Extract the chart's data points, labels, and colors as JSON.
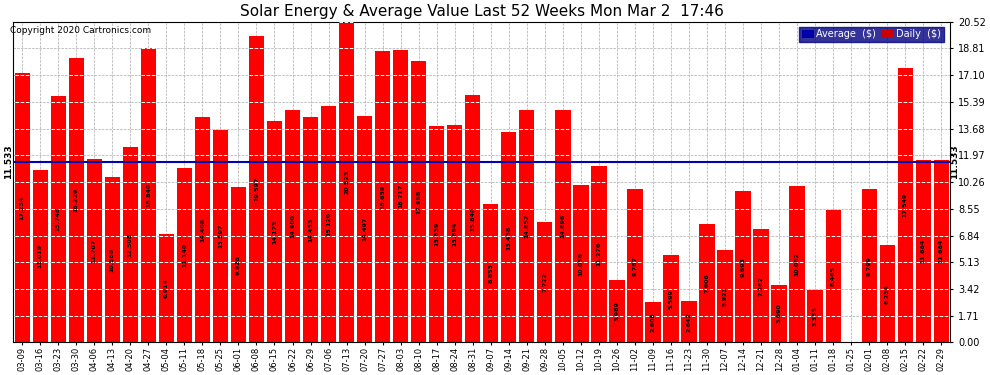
{
  "title": "Solar Energy & Average Value Last 52 Weeks Mon Mar 2  17:46",
  "copyright": "Copyright 2020 Cartronics.com",
  "average_line": 11.533,
  "average_label": "11.533",
  "bar_color": "#ff0000",
  "average_line_color": "#0000bb",
  "background_color": "#ffffff",
  "grid_color": "#aaaaaa",
  "yticks": [
    0.0,
    1.71,
    3.42,
    5.13,
    6.84,
    8.55,
    10.26,
    11.97,
    13.68,
    15.39,
    17.1,
    18.81,
    20.52
  ],
  "legend_avg_color": "#0000aa",
  "legend_daily_color": "#cc0000",
  "dates": [
    "03-09",
    "03-16",
    "03-23",
    "03-30",
    "04-06",
    "04-13",
    "04-20",
    "04-27",
    "05-04",
    "05-11",
    "05-18",
    "05-25",
    "06-01",
    "06-08",
    "06-15",
    "06-22",
    "06-29",
    "07-06",
    "07-13",
    "07-20",
    "07-27",
    "08-03",
    "08-10",
    "08-17",
    "08-24",
    "08-31",
    "09-07",
    "09-14",
    "09-21",
    "09-28",
    "10-05",
    "10-12",
    "10-19",
    "10-26",
    "11-02",
    "11-09",
    "11-16",
    "11-23",
    "11-30",
    "12-07",
    "12-14",
    "12-21",
    "12-28",
    "01-04",
    "01-11",
    "01-18",
    "01-25",
    "02-01",
    "02-08",
    "02-15",
    "02-22",
    "02-29"
  ],
  "values": [
    17.234,
    11.019,
    15.748,
    18.229,
    11.707,
    10.58,
    12.508,
    18.84,
    6.914,
    11.14,
    14.408,
    13.597,
    9.928,
    19.597,
    14.173,
    14.9,
    14.433,
    15.12,
    20.523,
    14.497,
    18.659,
    18.717,
    17.988,
    13.839,
    13.884,
    15.84,
    8.853,
    13.438,
    14.852,
    7.722,
    14.896,
    10.058,
    11.276,
    3.989,
    9.787,
    2.608,
    5.599,
    2.642,
    7.606,
    5.921,
    9.693,
    7.262,
    3.69,
    10.002,
    3.353,
    8.465,
    0.008,
    9.799,
    6.234,
    17.549,
    11.664,
    11.664
  ]
}
